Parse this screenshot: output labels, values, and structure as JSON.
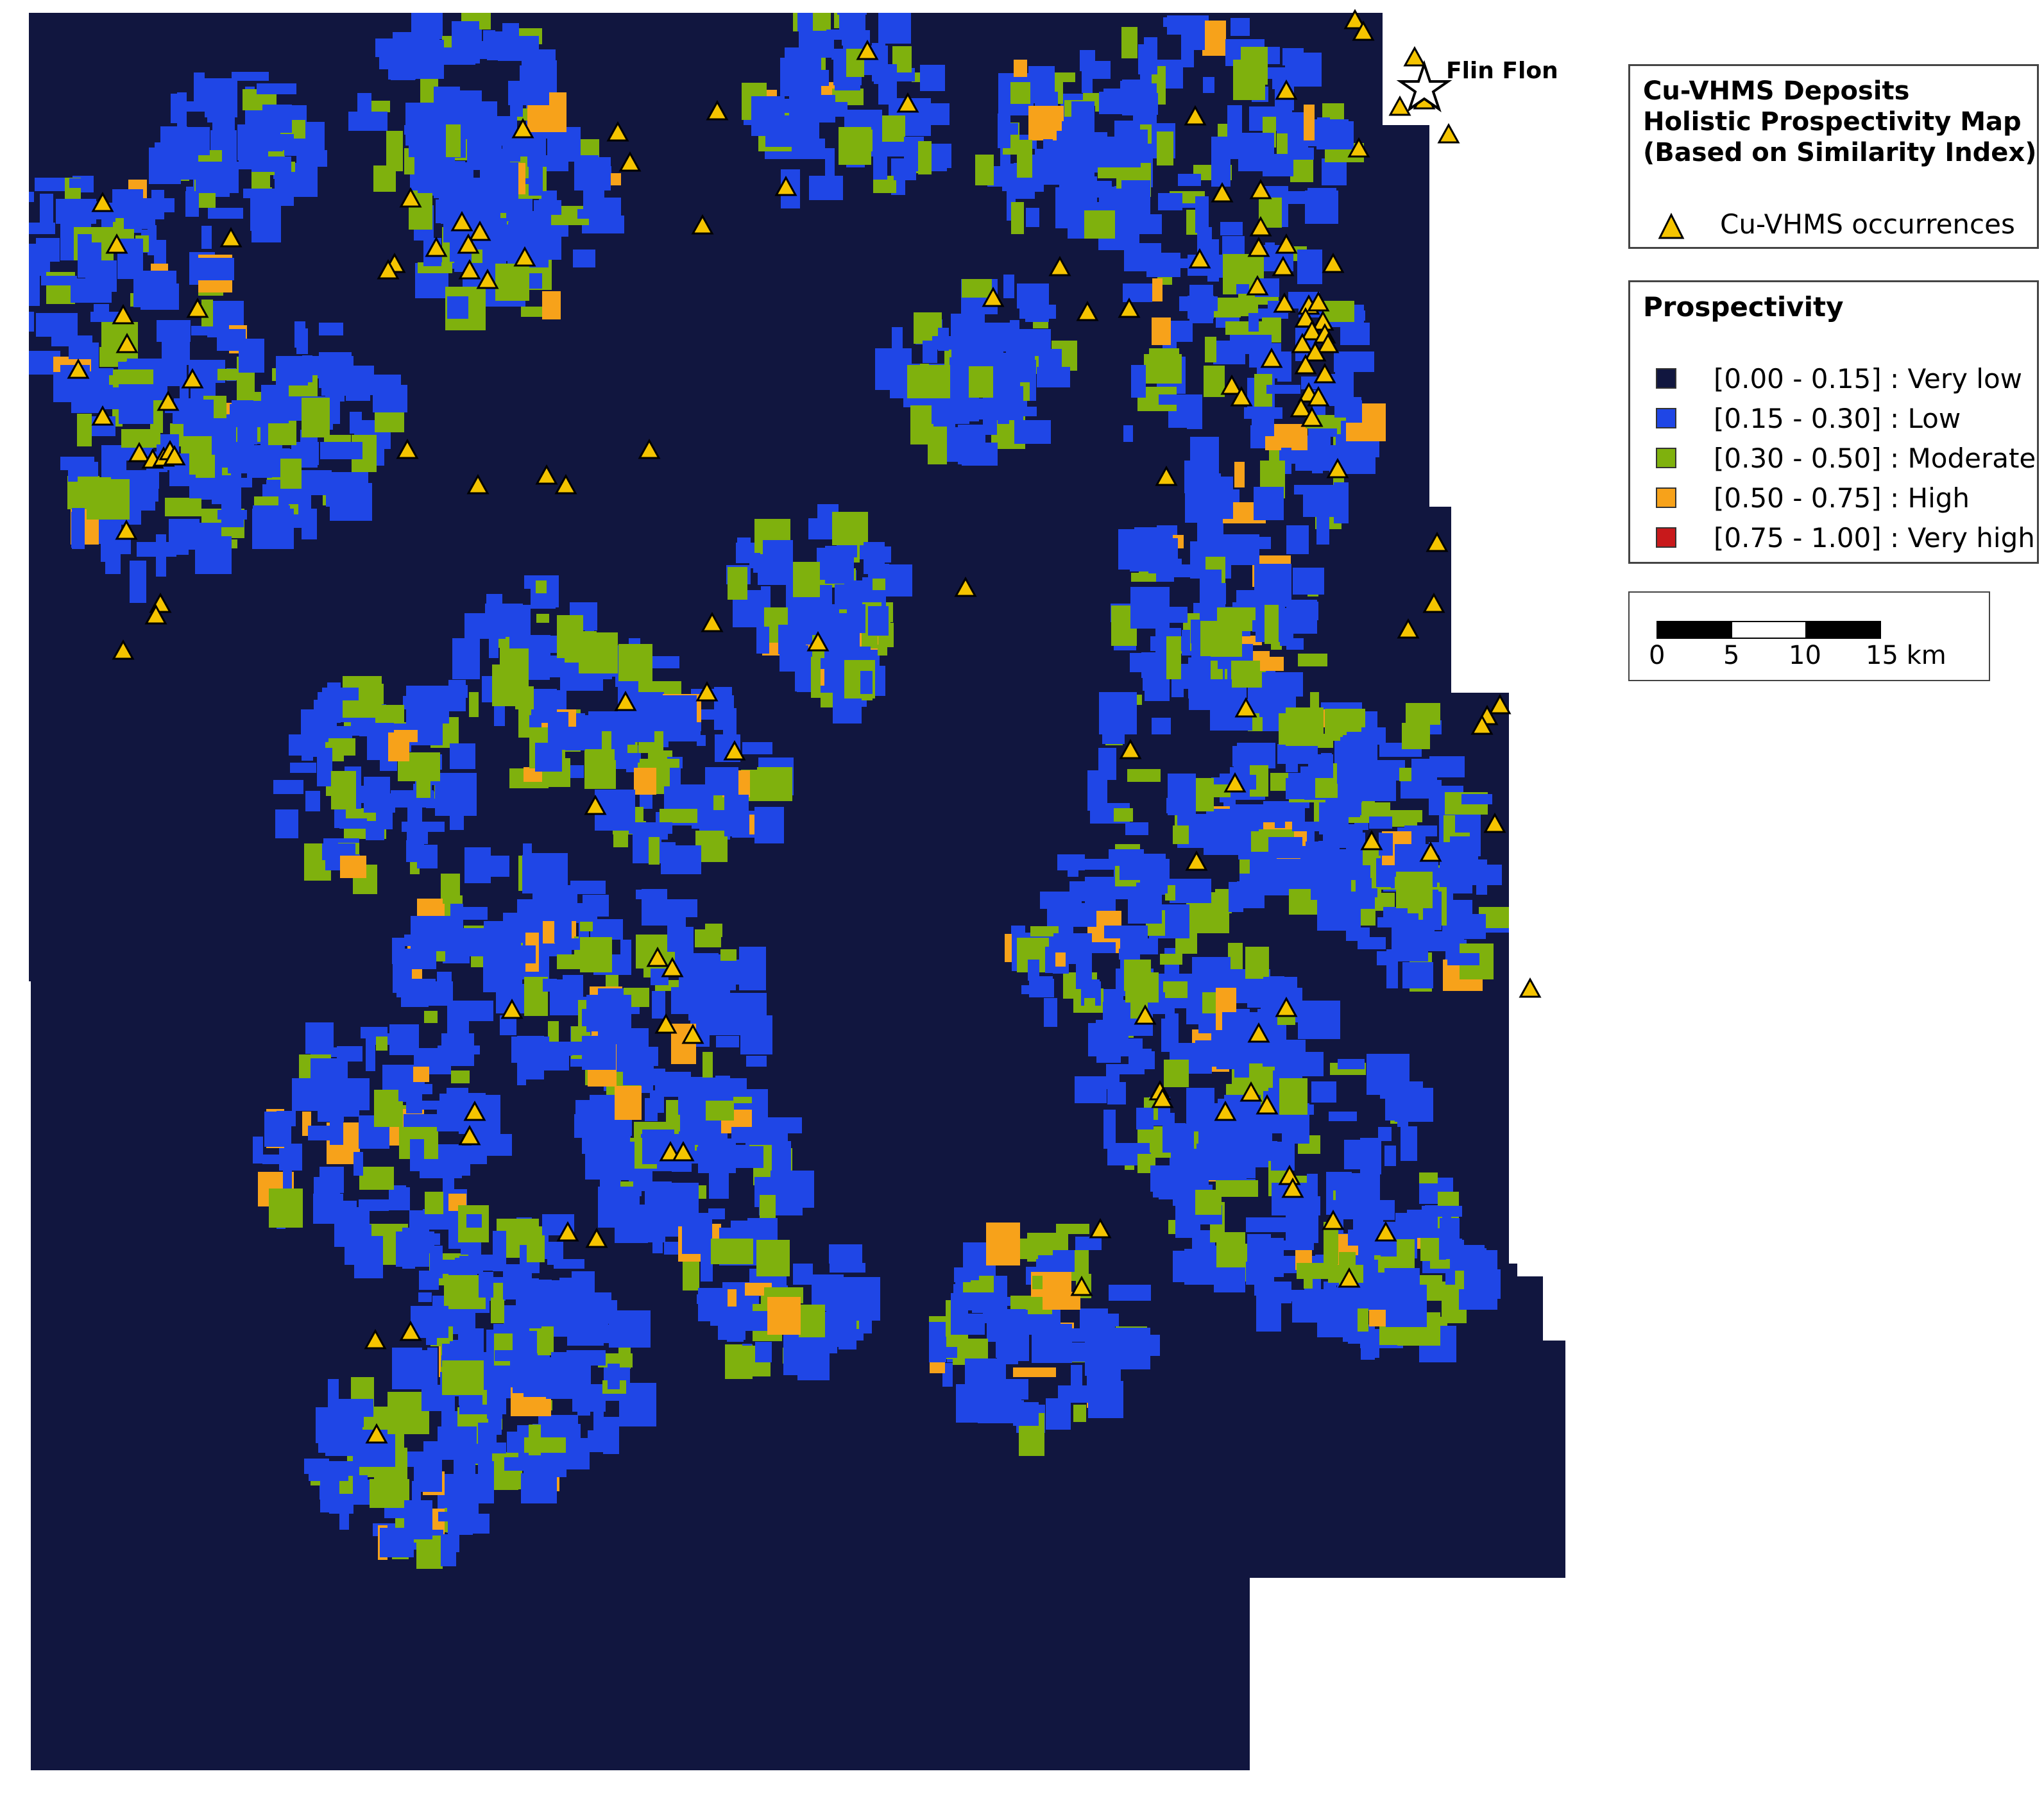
{
  "title": {
    "line1": "Cu-VHMS Deposits",
    "line2": "Holistic Prospectivity Map",
    "line3": "(Based on Similarity Index)"
  },
  "occurrence_legend": {
    "label": "Cu-VHMS occurrences",
    "symbol": "triangle-icon",
    "symbol_color": "#f5c400"
  },
  "prospectivity_legend": {
    "title": "Prospectivity",
    "classes": [
      {
        "label": "[0.00 - 0.15] : Very low",
        "color": "#11163f"
      },
      {
        "label": "[0.15 - 0.30] : Low",
        "color": "#1f46e6"
      },
      {
        "label": "[0.30 - 0.50] : Moderate",
        "color": "#7fb10d"
      },
      {
        "label": "[0.50 - 0.75] : High",
        "color": "#f7a21a"
      },
      {
        "label": "[0.75 - 1.00] : Very high",
        "color": "#c8191b"
      }
    ]
  },
  "scale_bar": {
    "labels": [
      "0",
      "5",
      "10",
      "15 km"
    ]
  },
  "place_label": {
    "name": "Flin Flon",
    "symbol": "star-icon"
  }
}
